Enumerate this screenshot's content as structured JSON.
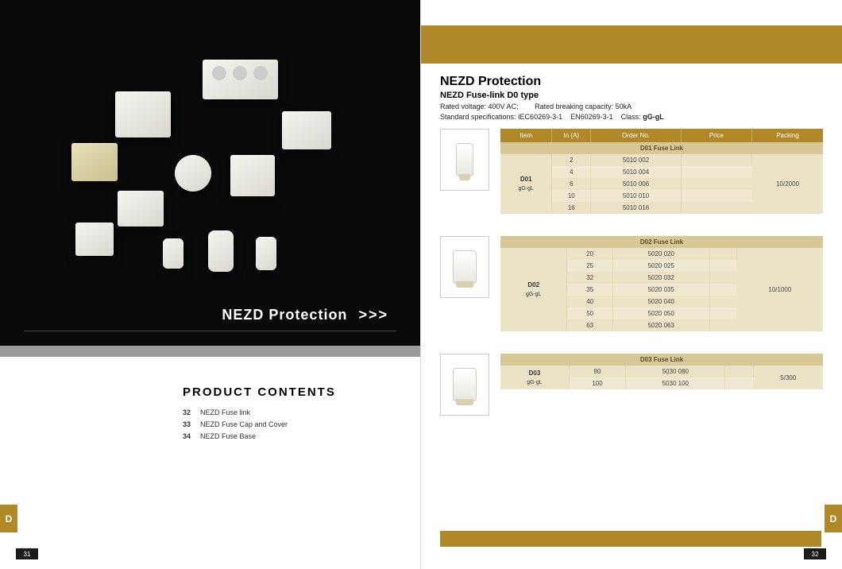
{
  "colors": {
    "gold": "#b08828",
    "cream": "#f0e8d0",
    "subhead": "#d8c898",
    "dark": "#0a0a0a"
  },
  "left": {
    "hero_title": "NEZD Protection",
    "hero_arrows": ">>>",
    "contents_title": "PRODUCT  CONTENTS",
    "contents": [
      {
        "pg": "32",
        "title": "NEZD Fuse link"
      },
      {
        "pg": "33",
        "title": "NEZD Fuse Cap and Cover"
      },
      {
        "pg": "34",
        "title": "NEZD Fuse Base"
      }
    ],
    "tab": "D",
    "pagenum": "31"
  },
  "right": {
    "title": "NEZD Protection",
    "subtitle": "NEZD Fuse-link    D0 type",
    "spec1_a": "Rated  voltage: 400V AC;",
    "spec1_b": "Rated breaking capacity: 50kA",
    "spec2_a": "Standard specifications: IEC60269-3-1",
    "spec2_b": "EN60269-3-1",
    "spec2_c": "Class:",
    "spec2_d": "gG-gL",
    "headers": [
      "Item",
      "In (A)",
      "Order No.",
      "Price",
      "Packing"
    ],
    "tables": [
      {
        "subhead": "D01 Fuse Link",
        "item": "D01",
        "item_sub": "gG-gL",
        "packing": "10/2000",
        "rows": [
          {
            "in": "2",
            "order": "5010 002"
          },
          {
            "in": "4",
            "order": "5010 004"
          },
          {
            "in": "6",
            "order": "5010 006"
          },
          {
            "in": "10",
            "order": "5010 010"
          },
          {
            "in": "16",
            "order": "5010 016"
          }
        ]
      },
      {
        "subhead": "D02 Fuse Link",
        "item": "D02",
        "item_sub": "gG-gL",
        "packing": "10/1000",
        "rows": [
          {
            "in": "20",
            "order": "5020 020"
          },
          {
            "in": "25",
            "order": "5020 025"
          },
          {
            "in": "32",
            "order": "5020 032"
          },
          {
            "in": "35",
            "order": "5020 035"
          },
          {
            "in": "40",
            "order": "5020 040"
          },
          {
            "in": "50",
            "order": "5020 050"
          },
          {
            "in": "63",
            "order": "5020 063"
          }
        ]
      },
      {
        "subhead": "D03 Fuse Link",
        "item": "D03",
        "item_sub": "gG-gL",
        "packing": "5/300",
        "rows": [
          {
            "in": "80",
            "order": "5030 080"
          },
          {
            "in": "100",
            "order": "5030 100"
          }
        ]
      }
    ],
    "tab": "D",
    "pagenum": "32"
  }
}
